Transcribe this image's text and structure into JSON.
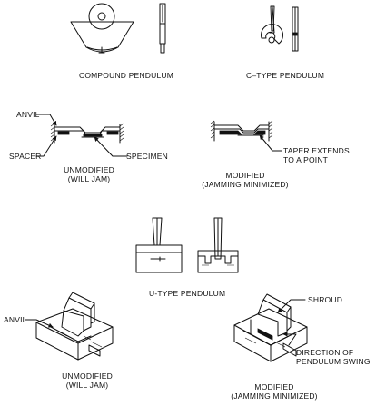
{
  "labels": {
    "compound_pendulum": "COMPOUND PENDULUM",
    "c_type_pendulum": "C–TYPE PENDULUM",
    "anvil_top": "ANVIL",
    "spacer": "SPACER",
    "specimen": "SPECIMEN",
    "unmodified_top_line1": "UNMODIFIED",
    "unmodified_top_line2": "(WILL JAM)",
    "taper_line1": "TAPER EXTENDS",
    "taper_line2": "TO A POINT",
    "modified_top_line1": "MODIFIED",
    "modified_top_line2": "(JAMMING MINIMIZED)",
    "u_type_pendulum": "U-TYPE PENDULUM",
    "anvil_bottom": "ANVIL",
    "unmodified_bottom_line1": "UNMODIFIED",
    "unmodified_bottom_line2": "(WILL JAM)",
    "shroud": "SHROUD",
    "direction_line1": "DIRECTION OF",
    "direction_line2": "PENDULUM SWING",
    "modified_bottom_line1": "MODIFIED",
    "modified_bottom_line2": "(JAMMING MINIMIZED)"
  }
}
